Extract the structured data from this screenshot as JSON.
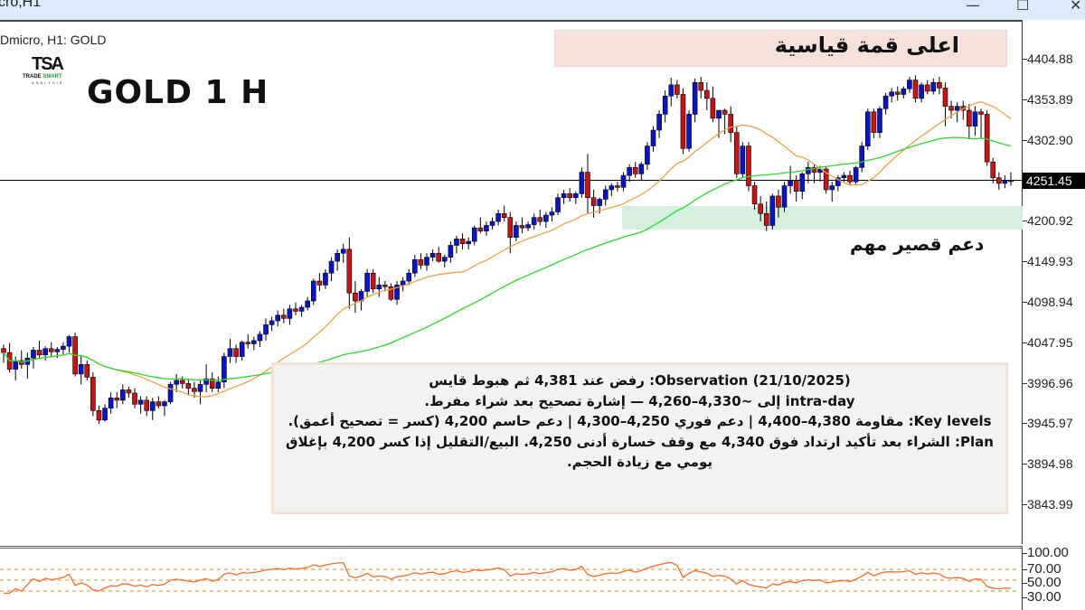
{
  "window": {
    "title_fragment": "cro,H1",
    "controls": [
      "minimize",
      "maximize",
      "close"
    ]
  },
  "chart_header": {
    "symbol_line": "Dmicro, H1:  GOLD",
    "big_title": "GOLD 1 H",
    "logo": {
      "mark": "TSA",
      "line1_a": "TRADE ",
      "line1_b": "SMART",
      "line2": "ANALYSIS"
    }
  },
  "annotations": {
    "ath_label": "اعلى قمة قياسية",
    "support_label": "دعم قصير مهم",
    "note_lines": [
      "Observation (21/10/2025): رفض عند 4,381 ثم هبوط قايس",
      "intra-day إلى ~4,330–4,260 — إشارة تصحيح بعد شراء مفرط.",
      "Key levels: مقاومة 4,380–4,400 | دعم فوري 4,250–4,300 | دعم حاسم 4,200 (كسر = تصحيح أعمق).",
      "Plan: الشراء بعد تأكيد ارتداد فوق 4,340 مع وقف خسارة أدنى 4,250. البيع/التقليل إذا كسر 4,200 بإغلاق يومي مع زيادة الحجم."
    ]
  },
  "price_axis": {
    "labels": [
      "4404.88",
      "4353.89",
      "4302.90",
      "4251.45",
      "4200.92",
      "4149.93",
      "4098.94",
      "4047.95",
      "3996.96",
      "3945.97",
      "3894.98",
      "3843.99"
    ],
    "current_price": "4251.45"
  },
  "oscillator_axis": {
    "labels": [
      "100.00",
      "70.00",
      "50.00",
      "30.00"
    ]
  },
  "colors": {
    "bull": "#0a14c8",
    "bear": "#c81414",
    "ma_fast": "#f5a040",
    "ma_slow": "#22e022",
    "oscillator": "#ff6a20",
    "support_zone": "#d5f0df",
    "ath_box": "#f5e0da"
  },
  "chart_data": {
    "type": "candlestick",
    "title": "GOLD 1 H",
    "symbol": "GOLD",
    "timeframe": "H1",
    "ylim": [
      3820,
      4430
    ],
    "yticks": [
      4404.88,
      4353.89,
      4302.9,
      4251.45,
      4200.92,
      4149.93,
      4098.94,
      4047.95,
      3996.96,
      3945.97,
      3894.98,
      3843.99
    ],
    "current_price": 4251.45,
    "support_zone": [
      4187,
      4217
    ],
    "all_time_high_approx": 4381,
    "candles_ohlc": [
      [
        4040,
        4045,
        4022,
        4035
      ],
      [
        4035,
        4047,
        4010,
        4014
      ],
      [
        4014,
        4030,
        4000,
        4025
      ],
      [
        4025,
        4038,
        4015,
        4020
      ],
      [
        4020,
        4035,
        4002,
        4028
      ],
      [
        4028,
        4042,
        4015,
        4038
      ],
      [
        4038,
        4050,
        4028,
        4032
      ],
      [
        4032,
        4043,
        4025,
        4040
      ],
      [
        4040,
        4048,
        4030,
        4036
      ],
      [
        4036,
        4042,
        4028,
        4039
      ],
      [
        4039,
        4048,
        4033,
        4043
      ],
      [
        4043,
        4057,
        4035,
        4055
      ],
      [
        4055,
        4060,
        4005,
        4008
      ],
      [
        4008,
        4030,
        3995,
        4020
      ],
      [
        4020,
        4025,
        4000,
        4004
      ],
      [
        4004,
        4010,
        3955,
        3962
      ],
      [
        3962,
        3968,
        3945,
        3950
      ],
      [
        3950,
        3970,
        3948,
        3965
      ],
      [
        3965,
        3985,
        3958,
        3978
      ],
      [
        3978,
        3985,
        3965,
        3975
      ],
      [
        3975,
        3995,
        3970,
        3988
      ],
      [
        3988,
        3992,
        3978,
        3984
      ],
      [
        3984,
        3990,
        3965,
        3970
      ],
      [
        3970,
        3980,
        3958,
        3975
      ],
      [
        3975,
        3980,
        3955,
        3962
      ],
      [
        3962,
        3978,
        3950,
        3973
      ],
      [
        3973,
        3980,
        3965,
        3968
      ],
      [
        3968,
        3975,
        3955,
        3973
      ],
      [
        3973,
        3998,
        3970,
        3995
      ],
      [
        3995,
        4008,
        3985,
        4000
      ],
      [
        4000,
        4005,
        3990,
        3996
      ],
      [
        3996,
        4002,
        3982,
        3990
      ],
      [
        3990,
        3998,
        3978,
        3986
      ],
      [
        3986,
        4000,
        3970,
        3995
      ],
      [
        3995,
        4020,
        3985,
        4002
      ],
      [
        4002,
        4010,
        3985,
        3990
      ],
      [
        3990,
        4005,
        3985,
        3998
      ],
      [
        3998,
        4035,
        3990,
        4030
      ],
      [
        4030,
        4052,
        4022,
        4040
      ],
      [
        4040,
        4045,
        4022,
        4030
      ],
      [
        4030,
        4050,
        4025,
        4048
      ],
      [
        4048,
        4058,
        4040,
        4046
      ],
      [
        4046,
        4055,
        4038,
        4050
      ],
      [
        4050,
        4062,
        4042,
        4058
      ],
      [
        4058,
        4078,
        4050,
        4070
      ],
      [
        4070,
        4080,
        4062,
        4075
      ],
      [
        4075,
        4088,
        4068,
        4082
      ],
      [
        4082,
        4090,
        4072,
        4078
      ],
      [
        4078,
        4095,
        4070,
        4090
      ],
      [
        4090,
        4098,
        4082,
        4087
      ],
      [
        4087,
        4095,
        4080,
        4092
      ],
      [
        4092,
        4105,
        4088,
        4100
      ],
      [
        4100,
        4128,
        4095,
        4125
      ],
      [
        4125,
        4135,
        4112,
        4120
      ],
      [
        4120,
        4140,
        4115,
        4135
      ],
      [
        4135,
        4155,
        4125,
        4150
      ],
      [
        4150,
        4165,
        4138,
        4160
      ],
      [
        4160,
        4172,
        4148,
        4165
      ],
      [
        4165,
        4180,
        4090,
        4110
      ],
      [
        4110,
        4125,
        4085,
        4100
      ],
      [
        4100,
        4115,
        4088,
        4112
      ],
      [
        4112,
        4140,
        4105,
        4135
      ],
      [
        4135,
        4140,
        4110,
        4115
      ],
      [
        4115,
        4130,
        4105,
        4120
      ],
      [
        4120,
        4125,
        4112,
        4118
      ],
      [
        4118,
        4122,
        4100,
        4102
      ],
      [
        4102,
        4125,
        4095,
        4120
      ],
      [
        4120,
        4130,
        4112,
        4125
      ],
      [
        4125,
        4140,
        4120,
        4135
      ],
      [
        4135,
        4158,
        4130,
        4152
      ],
      [
        4152,
        4160,
        4140,
        4145
      ],
      [
        4145,
        4160,
        4138,
        4155
      ],
      [
        4155,
        4165,
        4150,
        4160
      ],
      [
        4160,
        4168,
        4148,
        4150
      ],
      [
        4150,
        4158,
        4142,
        4155
      ],
      [
        4155,
        4175,
        4148,
        4170
      ],
      [
        4170,
        4182,
        4160,
        4178
      ],
      [
        4178,
        4185,
        4165,
        4172
      ],
      [
        4172,
        4180,
        4165,
        4175
      ],
      [
        4175,
        4195,
        4170,
        4192
      ],
      [
        4192,
        4205,
        4185,
        4188
      ],
      [
        4188,
        4200,
        4182,
        4195
      ],
      [
        4195,
        4205,
        4190,
        4200
      ],
      [
        4200,
        4215,
        4195,
        4210
      ],
      [
        4210,
        4220,
        4200,
        4205
      ],
      [
        4205,
        4212,
        4160,
        4180
      ],
      [
        4180,
        4200,
        4175,
        4195
      ],
      [
        4195,
        4205,
        4185,
        4192
      ],
      [
        4192,
        4200,
        4188,
        4196
      ],
      [
        4196,
        4210,
        4190,
        4205
      ],
      [
        4205,
        4215,
        4195,
        4200
      ],
      [
        4200,
        4212,
        4192,
        4208
      ],
      [
        4208,
        4218,
        4200,
        4212
      ],
      [
        4212,
        4235,
        4208,
        4230
      ],
      [
        4230,
        4240,
        4222,
        4235
      ],
      [
        4235,
        4242,
        4225,
        4230
      ],
      [
        4230,
        4238,
        4222,
        4235
      ],
      [
        4235,
        4268,
        4230,
        4262
      ],
      [
        4262,
        4285,
        4210,
        4230
      ],
      [
        4230,
        4240,
        4205,
        4220
      ],
      [
        4220,
        4230,
        4210,
        4228
      ],
      [
        4228,
        4245,
        4220,
        4240
      ],
      [
        4240,
        4248,
        4232,
        4245
      ],
      [
        4245,
        4250,
        4238,
        4243
      ],
      [
        4243,
        4262,
        4238,
        4258
      ],
      [
        4258,
        4272,
        4250,
        4268
      ],
      [
        4268,
        4275,
        4255,
        4260
      ],
      [
        4260,
        4275,
        4252,
        4272
      ],
      [
        4272,
        4300,
        4265,
        4295
      ],
      [
        4295,
        4320,
        4288,
        4315
      ],
      [
        4315,
        4340,
        4305,
        4335
      ],
      [
        4335,
        4365,
        4325,
        4358
      ],
      [
        4358,
        4381,
        4345,
        4372
      ],
      [
        4372,
        4378,
        4355,
        4360
      ],
      [
        4360,
        4368,
        4285,
        4292
      ],
      [
        4292,
        4340,
        4288,
        4335
      ],
      [
        4335,
        4380,
        4325,
        4375
      ],
      [
        4375,
        4382,
        4355,
        4365
      ],
      [
        4365,
        4375,
        4340,
        4355
      ],
      [
        4355,
        4370,
        4325,
        4330
      ],
      [
        4330,
        4340,
        4305,
        4340
      ],
      [
        4340,
        4342,
        4310,
        4335
      ],
      [
        4335,
        4345,
        4300,
        4312
      ],
      [
        4312,
        4320,
        4255,
        4260
      ],
      [
        4260,
        4300,
        4255,
        4295
      ],
      [
        4295,
        4300,
        4238,
        4245
      ],
      [
        4245,
        4250,
        4215,
        4222
      ],
      [
        4222,
        4232,
        4200,
        4210
      ],
      [
        4210,
        4225,
        4188,
        4195
      ],
      [
        4195,
        4235,
        4190,
        4232
      ],
      [
        4232,
        4240,
        4205,
        4218
      ],
      [
        4218,
        4250,
        4212,
        4245
      ],
      [
        4245,
        4270,
        4235,
        4252
      ],
      [
        4252,
        4258,
        4225,
        4238
      ],
      [
        4238,
        4262,
        4228,
        4260
      ],
      [
        4260,
        4275,
        4248,
        4268
      ],
      [
        4268,
        4272,
        4248,
        4262
      ],
      [
        4262,
        4270,
        4250,
        4266
      ],
      [
        4266,
        4270,
        4235,
        4240
      ],
      [
        4240,
        4250,
        4225,
        4245
      ],
      [
        4245,
        4258,
        4238,
        4255
      ],
      [
        4255,
        4262,
        4250,
        4258
      ],
      [
        4258,
        4264,
        4245,
        4250
      ],
      [
        4250,
        4270,
        4247,
        4268
      ],
      [
        4268,
        4300,
        4262,
        4295
      ],
      [
        4295,
        4342,
        4290,
        4338
      ],
      [
        4338,
        4342,
        4305,
        4312
      ],
      [
        4312,
        4345,
        4305,
        4342
      ],
      [
        4342,
        4362,
        4335,
        4358
      ],
      [
        4358,
        4368,
        4350,
        4363
      ],
      [
        4363,
        4370,
        4352,
        4360
      ],
      [
        4360,
        4370,
        4355,
        4367
      ],
      [
        4367,
        4382,
        4362,
        4378
      ],
      [
        4378,
        4384,
        4350,
        4355
      ],
      [
        4355,
        4375,
        4350,
        4372
      ],
      [
        4372,
        4378,
        4360,
        4364
      ],
      [
        4364,
        4380,
        4360,
        4375
      ],
      [
        4375,
        4382,
        4360,
        4368
      ],
      [
        4368,
        4375,
        4320,
        4345
      ],
      [
        4345,
        4352,
        4330,
        4340
      ],
      [
        4340,
        4350,
        4325,
        4345
      ],
      [
        4345,
        4352,
        4328,
        4340
      ],
      [
        4340,
        4348,
        4305,
        4320
      ],
      [
        4320,
        4345,
        4308,
        4338
      ],
      [
        4338,
        4342,
        4305,
        4335
      ],
      [
        4335,
        4340,
        4270,
        4275
      ],
      [
        4275,
        4280,
        4248,
        4255
      ],
      [
        4255,
        4262,
        4240,
        4248
      ],
      [
        4248,
        4258,
        4242,
        4252
      ],
      [
        4252,
        4262,
        4245,
        4251
      ]
    ],
    "series": [
      {
        "name": "MA fast (orange)",
        "type": "line"
      },
      {
        "name": "MA slow (green)",
        "type": "line"
      }
    ],
    "oscillator": {
      "name": "RSI-like",
      "levels": [
        70,
        50,
        30
      ],
      "range": [
        0,
        100
      ]
    }
  }
}
